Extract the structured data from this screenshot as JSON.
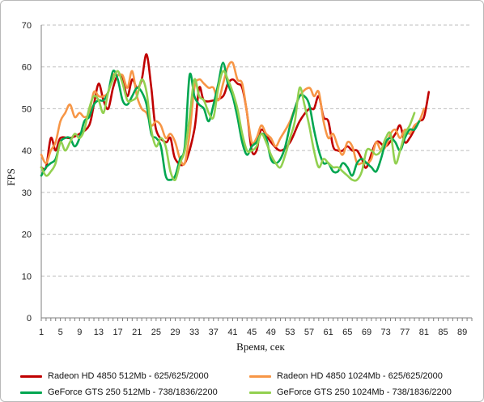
{
  "chart_data": {
    "type": "line",
    "title": "",
    "xlabel": "Время, сек",
    "ylabel": "FPS",
    "ylim": [
      0,
      70
    ],
    "yticks": [
      0,
      10,
      20,
      30,
      40,
      50,
      60,
      70
    ],
    "xlim": [
      1,
      91
    ],
    "xticks": [
      1,
      5,
      9,
      13,
      17,
      21,
      25,
      29,
      33,
      37,
      41,
      45,
      49,
      53,
      57,
      61,
      65,
      69,
      73,
      77,
      81,
      85,
      89
    ],
    "grid": "horizontal",
    "legend_position": "bottom",
    "series": [
      {
        "name": "Radeon HD 4850 512Mb - 625/625/2000",
        "color": "#c00000",
        "points": [
          [
            1,
            36
          ],
          [
            2,
            36
          ],
          [
            3,
            43
          ],
          [
            4,
            40
          ],
          [
            5,
            43
          ],
          [
            7,
            43
          ],
          [
            9,
            44
          ],
          [
            11,
            46
          ],
          [
            12,
            51
          ],
          [
            13,
            56
          ],
          [
            14,
            52
          ],
          [
            15,
            50
          ],
          [
            16,
            55
          ],
          [
            17,
            58
          ],
          [
            18,
            57
          ],
          [
            19,
            53
          ],
          [
            20,
            57
          ],
          [
            21,
            55
          ],
          [
            22,
            57
          ],
          [
            23,
            63
          ],
          [
            24,
            55
          ],
          [
            25,
            45
          ],
          [
            27,
            42
          ],
          [
            28,
            43
          ],
          [
            29,
            38
          ],
          [
            31,
            37
          ],
          [
            33,
            45
          ],
          [
            34,
            55
          ],
          [
            35,
            52
          ],
          [
            37,
            52
          ],
          [
            39,
            53
          ],
          [
            40,
            56
          ],
          [
            41,
            57
          ],
          [
            42,
            56
          ],
          [
            43,
            55
          ],
          [
            44,
            49
          ],
          [
            45,
            40
          ],
          [
            46,
            40
          ],
          [
            47,
            45
          ],
          [
            49,
            42
          ],
          [
            51,
            40
          ],
          [
            53,
            42
          ],
          [
            55,
            47
          ],
          [
            57,
            50
          ],
          [
            58,
            50
          ],
          [
            59,
            53
          ],
          [
            60,
            48
          ],
          [
            61,
            47
          ],
          [
            62,
            41
          ],
          [
            63,
            40
          ],
          [
            64,
            40
          ],
          [
            65,
            41
          ],
          [
            66,
            40
          ],
          [
            67,
            40
          ],
          [
            68,
            38
          ],
          [
            69,
            36
          ],
          [
            71,
            42
          ],
          [
            73,
            41
          ],
          [
            75,
            44
          ],
          [
            76,
            46
          ],
          [
            77,
            42
          ],
          [
            78,
            43
          ],
          [
            79,
            45
          ],
          [
            80,
            47
          ],
          [
            81,
            48
          ],
          [
            82,
            54
          ]
        ]
      },
      {
        "name": "Radeon HD 4850 1024Mb - 625/625/2000",
        "color": "#f79646",
        "points": [
          [
            1,
            39
          ],
          [
            2,
            37
          ],
          [
            3,
            40
          ],
          [
            4,
            42
          ],
          [
            5,
            47
          ],
          [
            6,
            49
          ],
          [
            7,
            51
          ],
          [
            8,
            48
          ],
          [
            9,
            49
          ],
          [
            10,
            48
          ],
          [
            11,
            49
          ],
          [
            12,
            54
          ],
          [
            13,
            53
          ],
          [
            14,
            53
          ],
          [
            15,
            54
          ],
          [
            16,
            58
          ],
          [
            17,
            58
          ],
          [
            18,
            58
          ],
          [
            19,
            55
          ],
          [
            20,
            59
          ],
          [
            21,
            53
          ],
          [
            22,
            50
          ],
          [
            23,
            49
          ],
          [
            24,
            46
          ],
          [
            25,
            47
          ],
          [
            26,
            46
          ],
          [
            27,
            43
          ],
          [
            28,
            44
          ],
          [
            29,
            42
          ],
          [
            30,
            38
          ],
          [
            31,
            37
          ],
          [
            32,
            44
          ],
          [
            33,
            55
          ],
          [
            34,
            57
          ],
          [
            35,
            56
          ],
          [
            36,
            55
          ],
          [
            37,
            55
          ],
          [
            38,
            52
          ],
          [
            39,
            56
          ],
          [
            40,
            60
          ],
          [
            41,
            61
          ],
          [
            42,
            57
          ],
          [
            43,
            56
          ],
          [
            44,
            49
          ],
          [
            45,
            42
          ],
          [
            46,
            43
          ],
          [
            47,
            46
          ],
          [
            48,
            44
          ],
          [
            49,
            43
          ],
          [
            50,
            41
          ],
          [
            51,
            43
          ],
          [
            53,
            47
          ],
          [
            55,
            53
          ],
          [
            57,
            55
          ],
          [
            58,
            53
          ],
          [
            59,
            54
          ],
          [
            60,
            47
          ],
          [
            61,
            43
          ],
          [
            62,
            44
          ],
          [
            63,
            41
          ],
          [
            64,
            39
          ],
          [
            65,
            42
          ],
          [
            66,
            41
          ],
          [
            67,
            37
          ],
          [
            68,
            37
          ],
          [
            69,
            37
          ],
          [
            70,
            38
          ],
          [
            71,
            42
          ],
          [
            72,
            40
          ],
          [
            73,
            41
          ],
          [
            74,
            44
          ],
          [
            75,
            45
          ],
          [
            76,
            43
          ],
          [
            77,
            45
          ],
          [
            78,
            44
          ],
          [
            79,
            46
          ],
          [
            80,
            47
          ],
          [
            81,
            50
          ]
        ]
      },
      {
        "name": "GeForce GTS 250 512Mb - 738/1836/2200",
        "color": "#00a651",
        "points": [
          [
            1,
            34
          ],
          [
            2,
            36
          ],
          [
            3,
            37
          ],
          [
            4,
            38
          ],
          [
            5,
            42
          ],
          [
            6,
            43
          ],
          [
            7,
            43
          ],
          [
            8,
            41
          ],
          [
            9,
            43
          ],
          [
            10,
            47
          ],
          [
            11,
            48
          ],
          [
            12,
            51
          ],
          [
            13,
            52
          ],
          [
            14,
            52
          ],
          [
            15,
            54
          ],
          [
            16,
            59
          ],
          [
            17,
            57
          ],
          [
            18,
            52
          ],
          [
            19,
            51
          ],
          [
            20,
            53
          ],
          [
            21,
            55
          ],
          [
            22,
            54
          ],
          [
            23,
            51
          ],
          [
            24,
            44
          ],
          [
            25,
            43
          ],
          [
            26,
            41
          ],
          [
            27,
            34
          ],
          [
            28,
            33
          ],
          [
            29,
            34
          ],
          [
            30,
            38
          ],
          [
            31,
            41
          ],
          [
            32,
            58
          ],
          [
            33,
            53
          ],
          [
            34,
            51
          ],
          [
            35,
            50
          ],
          [
            36,
            47
          ],
          [
            37,
            51
          ],
          [
            38,
            56
          ],
          [
            39,
            61
          ],
          [
            40,
            56
          ],
          [
            41,
            53
          ],
          [
            42,
            48
          ],
          [
            43,
            42
          ],
          [
            44,
            39
          ],
          [
            45,
            41
          ],
          [
            46,
            42
          ],
          [
            47,
            44
          ],
          [
            48,
            43
          ],
          [
            49,
            38
          ],
          [
            50,
            37
          ],
          [
            51,
            38
          ],
          [
            52,
            41
          ],
          [
            53,
            46
          ],
          [
            54,
            50
          ],
          [
            55,
            53
          ],
          [
            56,
            53
          ],
          [
            57,
            51
          ],
          [
            58,
            45
          ],
          [
            59,
            40
          ],
          [
            60,
            37
          ],
          [
            61,
            37
          ],
          [
            62,
            35
          ],
          [
            63,
            35
          ],
          [
            64,
            37
          ],
          [
            65,
            36
          ],
          [
            66,
            34
          ],
          [
            67,
            37
          ],
          [
            68,
            38
          ],
          [
            69,
            37
          ],
          [
            70,
            36
          ],
          [
            71,
            35
          ],
          [
            72,
            38
          ],
          [
            73,
            42
          ],
          [
            74,
            43
          ],
          [
            75,
            42
          ],
          [
            76,
            40
          ],
          [
            77,
            43
          ],
          [
            78,
            45
          ],
          [
            79,
            45
          ],
          [
            80,
            47
          ]
        ]
      },
      {
        "name": "GeForce GTS 250 1024Mb - 738/1836/2200",
        "color": "#92d050",
        "points": [
          [
            1,
            36
          ],
          [
            2,
            34
          ],
          [
            3,
            35
          ],
          [
            4,
            37
          ],
          [
            5,
            42
          ],
          [
            6,
            40
          ],
          [
            7,
            42
          ],
          [
            8,
            44
          ],
          [
            9,
            43
          ],
          [
            10,
            45
          ],
          [
            11,
            50
          ],
          [
            12,
            53
          ],
          [
            13,
            52
          ],
          [
            14,
            49
          ],
          [
            15,
            54
          ],
          [
            16,
            57
          ],
          [
            17,
            59
          ],
          [
            18,
            56
          ],
          [
            19,
            52
          ],
          [
            20,
            52
          ],
          [
            21,
            53
          ],
          [
            22,
            57
          ],
          [
            23,
            54
          ],
          [
            24,
            45
          ],
          [
            25,
            41
          ],
          [
            26,
            43
          ],
          [
            27,
            41
          ],
          [
            28,
            35
          ],
          [
            29,
            33
          ],
          [
            30,
            37
          ],
          [
            31,
            40
          ],
          [
            32,
            48
          ],
          [
            33,
            57
          ],
          [
            34,
            53
          ],
          [
            35,
            52
          ],
          [
            36,
            49
          ],
          [
            37,
            48
          ],
          [
            38,
            55
          ],
          [
            39,
            59
          ],
          [
            40,
            57
          ],
          [
            41,
            54
          ],
          [
            42,
            50
          ],
          [
            43,
            44
          ],
          [
            44,
            40
          ],
          [
            45,
            40
          ],
          [
            46,
            41
          ],
          [
            47,
            44
          ],
          [
            48,
            42
          ],
          [
            49,
            39
          ],
          [
            50,
            37
          ],
          [
            51,
            36
          ],
          [
            52,
            39
          ],
          [
            53,
            43
          ],
          [
            54,
            47
          ],
          [
            55,
            55
          ],
          [
            56,
            51
          ],
          [
            57,
            46
          ],
          [
            58,
            40
          ],
          [
            59,
            36
          ],
          [
            60,
            38
          ],
          [
            61,
            37
          ],
          [
            62,
            36
          ],
          [
            63,
            36
          ],
          [
            64,
            35
          ],
          [
            65,
            34
          ],
          [
            66,
            33
          ],
          [
            67,
            33
          ],
          [
            68,
            35
          ],
          [
            69,
            40
          ],
          [
            70,
            40
          ],
          [
            71,
            39
          ],
          [
            72,
            40
          ],
          [
            73,
            43
          ],
          [
            74,
            44
          ],
          [
            75,
            37
          ],
          [
            76,
            40
          ],
          [
            77,
            44
          ],
          [
            78,
            46
          ],
          [
            79,
            49
          ]
        ]
      }
    ]
  }
}
